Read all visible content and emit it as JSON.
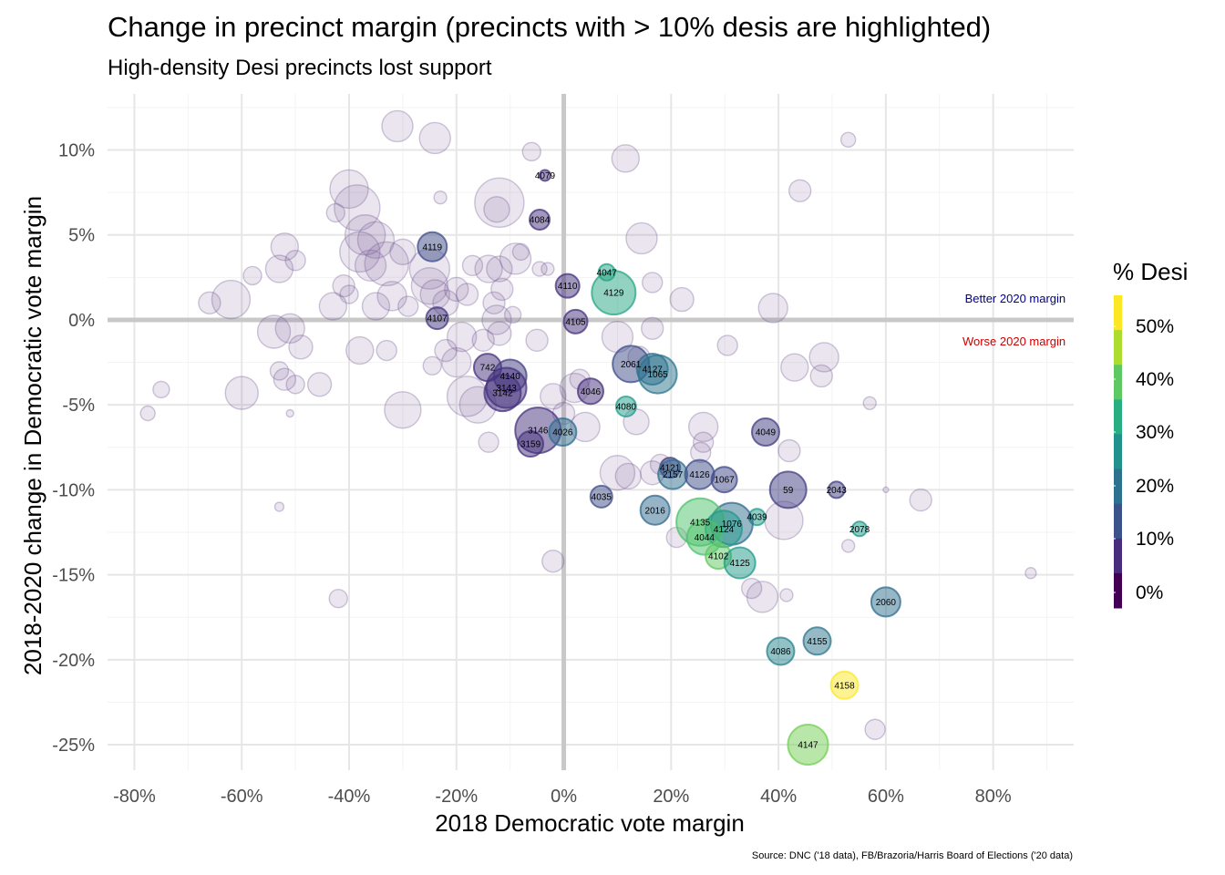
{
  "chart_data": {
    "type": "scatter",
    "title": "Change in precinct margin (precincts with > 10% desis are highlighted)",
    "subtitle": "High-density Desi precincts lost support",
    "xlabel": "2018 Democratic vote margin",
    "ylabel": "2018-2020 change in Democratic vote margin",
    "caption": "Source: DNC ('18 data), FB/Brazoria/Harris Board of Elections ('20 data)",
    "xlim": [
      -0.85,
      0.95
    ],
    "ylim": [
      -0.265,
      0.133
    ],
    "x_ticks": [
      -0.8,
      -0.6,
      -0.4,
      -0.2,
      0,
      0.2,
      0.4,
      0.6,
      0.8
    ],
    "x_tick_labels": [
      "-80%",
      "-60%",
      "-40%",
      "-20%",
      "0%",
      "20%",
      "40%",
      "60%",
      "80%"
    ],
    "y_ticks": [
      0.1,
      0.05,
      0,
      -0.05,
      -0.1,
      -0.15,
      -0.2,
      -0.25
    ],
    "y_tick_labels": [
      "10%",
      "5%",
      "0%",
      "-5%",
      "-10%",
      "-15%",
      "-20%",
      "-25%"
    ],
    "grid": true,
    "annotations": [
      {
        "text": "Better 2020 margin",
        "color": "#00008b",
        "x": 0.935,
        "y": 0.008
      },
      {
        "text": "Worse 2020 margin",
        "color": "#cd0000",
        "x": 0.935,
        "y": -0.008
      }
    ],
    "legend": {
      "title": "% Desi",
      "placement": "right",
      "labels": [
        "50%",
        "40%",
        "30%",
        "20%",
        "10%",
        "0%"
      ],
      "colors": [
        "#440154",
        "#472d7b",
        "#3b528b",
        "#2c728e",
        "#21918c",
        "#28ae80",
        "#5ec962",
        "#addc30",
        "#fde725"
      ]
    },
    "highlighted": [
      {
        "label": "4079",
        "x": -0.035,
        "y": 0.085,
        "size": 6,
        "desi": 0.08
      },
      {
        "label": "4084",
        "x": -0.045,
        "y": 0.059,
        "size": 11,
        "desi": 0.08
      },
      {
        "label": "4119",
        "x": -0.245,
        "y": 0.043,
        "size": 16,
        "desi": 0.13
      },
      {
        "label": "4047",
        "x": 0.08,
        "y": 0.028,
        "size": 9,
        "desi": 0.32
      },
      {
        "label": "4110",
        "x": 0.007,
        "y": 0.02,
        "size": 13,
        "desi": 0.08
      },
      {
        "label": "4129",
        "x": 0.093,
        "y": 0.016,
        "size": 24,
        "desi": 0.33
      },
      {
        "label": "4107",
        "x": -0.236,
        "y": 0.001,
        "size": 12,
        "desi": 0.09
      },
      {
        "label": "4105",
        "x": 0.022,
        "y": -0.001,
        "size": 13,
        "desi": 0.08
      },
      {
        "label": "742",
        "x": -0.142,
        "y": -0.028,
        "size": 15,
        "desi": 0.08
      },
      {
        "label": "4140",
        "x": -0.1,
        "y": -0.033,
        "size": 18,
        "desi": 0.1
      },
      {
        "label": "3143",
        "x": -0.107,
        "y": -0.04,
        "size": 22,
        "desi": 0.08
      },
      {
        "label": "3142",
        "x": -0.114,
        "y": -0.043,
        "size": 20,
        "desi": 0.08
      },
      {
        "label": "2061",
        "x": 0.125,
        "y": -0.026,
        "size": 20,
        "desi": 0.13
      },
      {
        "label": "4127",
        "x": 0.165,
        "y": -0.029,
        "size": 17,
        "desi": 0.2
      },
      {
        "label": "1065",
        "x": 0.175,
        "y": -0.032,
        "size": 21,
        "desi": 0.22
      },
      {
        "label": "4046",
        "x": 0.05,
        "y": -0.042,
        "size": 14,
        "desi": 0.08
      },
      {
        "label": "4080",
        "x": 0.116,
        "y": -0.051,
        "size": 11,
        "desi": 0.31
      },
      {
        "label": "3146",
        "x": -0.048,
        "y": -0.065,
        "size": 25,
        "desi": 0.08
      },
      {
        "label": "4026",
        "x": -0.002,
        "y": -0.066,
        "size": 15,
        "desi": 0.2
      },
      {
        "label": "3159",
        "x": -0.062,
        "y": -0.073,
        "size": 14,
        "desi": 0.08
      },
      {
        "label": "4049",
        "x": 0.376,
        "y": -0.066,
        "size": 15,
        "desi": 0.1
      },
      {
        "label": "4121",
        "x": 0.198,
        "y": -0.087,
        "size": 11,
        "desi": 0.09
      },
      {
        "label": "2157",
        "x": 0.203,
        "y": -0.091,
        "size": 16,
        "desi": 0.2
      },
      {
        "label": "4126",
        "x": 0.253,
        "y": -0.091,
        "size": 16,
        "desi": 0.13
      },
      {
        "label": "1067",
        "x": 0.299,
        "y": -0.094,
        "size": 14,
        "desi": 0.12
      },
      {
        "label": "59",
        "x": 0.418,
        "y": -0.1,
        "size": 20,
        "desi": 0.1
      },
      {
        "label": "2043",
        "x": 0.508,
        "y": -0.1,
        "size": 9,
        "desi": 0.1
      },
      {
        "label": "4035",
        "x": 0.07,
        "y": -0.104,
        "size": 12,
        "desi": 0.13
      },
      {
        "label": "2016",
        "x": 0.17,
        "y": -0.112,
        "size": 16,
        "desi": 0.19
      },
      {
        "label": "4039",
        "x": 0.36,
        "y": -0.116,
        "size": 9,
        "desi": 0.31
      },
      {
        "label": "1076",
        "x": 0.313,
        "y": -0.12,
        "size": 23,
        "desi": 0.2
      },
      {
        "label": "4135",
        "x": 0.254,
        "y": -0.119,
        "size": 26,
        "desi": 0.4
      },
      {
        "label": "4124",
        "x": 0.298,
        "y": -0.123,
        "size": 20,
        "desi": 0.3
      },
      {
        "label": "2078",
        "x": 0.551,
        "y": -0.123,
        "size": 8,
        "desi": 0.3
      },
      {
        "label": "4044",
        "x": 0.262,
        "y": -0.128,
        "size": 19,
        "desi": 0.4
      },
      {
        "label": "4102",
        "x": 0.288,
        "y": -0.139,
        "size": 14,
        "desi": 0.42
      },
      {
        "label": "4125",
        "x": 0.328,
        "y": -0.143,
        "size": 17,
        "desi": 0.3
      },
      {
        "label": "2060",
        "x": 0.6,
        "y": -0.166,
        "size": 16,
        "desi": 0.2
      },
      {
        "label": "4155",
        "x": 0.472,
        "y": -0.189,
        "size": 15,
        "desi": 0.22
      },
      {
        "label": "4086",
        "x": 0.404,
        "y": -0.195,
        "size": 15,
        "desi": 0.25
      },
      {
        "label": "4158",
        "x": 0.523,
        "y": -0.215,
        "size": 15,
        "desi": 0.56
      },
      {
        "label": "4147",
        "x": 0.455,
        "y": -0.25,
        "size": 22,
        "desi": 0.44
      }
    ],
    "background_points": [
      {
        "x": -0.31,
        "y": 0.114,
        "size": 17
      },
      {
        "x": -0.24,
        "y": 0.107,
        "size": 17
      },
      {
        "x": -0.06,
        "y": 0.099,
        "size": 10
      },
      {
        "x": 0.115,
        "y": 0.095,
        "size": 15
      },
      {
        "x": 0.53,
        "y": 0.106,
        "size": 8
      },
      {
        "x": -0.23,
        "y": 0.072,
        "size": 7
      },
      {
        "x": 0.44,
        "y": 0.076,
        "size": 12
      },
      {
        "x": -0.4,
        "y": 0.077,
        "size": 21
      },
      {
        "x": -0.385,
        "y": 0.066,
        "size": 25
      },
      {
        "x": -0.425,
        "y": 0.063,
        "size": 10
      },
      {
        "x": -0.12,
        "y": 0.069,
        "size": 27
      },
      {
        "x": -0.125,
        "y": 0.065,
        "size": 14
      },
      {
        "x": -0.37,
        "y": 0.05,
        "size": 22
      },
      {
        "x": -0.35,
        "y": 0.047,
        "size": 20
      },
      {
        "x": -0.38,
        "y": 0.04,
        "size": 22
      },
      {
        "x": -0.36,
        "y": 0.032,
        "size": 17
      },
      {
        "x": -0.33,
        "y": 0.033,
        "size": 24
      },
      {
        "x": -0.3,
        "y": 0.04,
        "size": 14
      },
      {
        "x": -0.41,
        "y": 0.02,
        "size": 12
      },
      {
        "x": -0.4,
        "y": 0.015,
        "size": 10
      },
      {
        "x": -0.35,
        "y": 0.008,
        "size": 15
      },
      {
        "x": -0.32,
        "y": 0.014,
        "size": 16
      },
      {
        "x": -0.29,
        "y": 0.008,
        "size": 11
      },
      {
        "x": -0.43,
        "y": 0.008,
        "size": 15
      },
      {
        "x": -0.52,
        "y": 0.043,
        "size": 15
      },
      {
        "x": -0.53,
        "y": 0.03,
        "size": 15
      },
      {
        "x": -0.5,
        "y": 0.035,
        "size": 11
      },
      {
        "x": -0.58,
        "y": 0.026,
        "size": 10
      },
      {
        "x": -0.62,
        "y": 0.012,
        "size": 21
      },
      {
        "x": -0.66,
        "y": 0.01,
        "size": 12
      },
      {
        "x": -0.54,
        "y": -0.007,
        "size": 18
      },
      {
        "x": -0.51,
        "y": -0.005,
        "size": 16
      },
      {
        "x": -0.49,
        "y": -0.016,
        "size": 13
      },
      {
        "x": -0.6,
        "y": -0.043,
        "size": 18
      },
      {
        "x": -0.53,
        "y": -0.03,
        "size": 10
      },
      {
        "x": -0.52,
        "y": -0.035,
        "size": 12
      },
      {
        "x": -0.5,
        "y": -0.038,
        "size": 10
      },
      {
        "x": -0.455,
        "y": -0.038,
        "size": 13
      },
      {
        "x": -0.75,
        "y": -0.041,
        "size": 9
      },
      {
        "x": -0.775,
        "y": -0.055,
        "size": 8
      },
      {
        "x": -0.51,
        "y": -0.055,
        "size": 4
      },
      {
        "x": -0.53,
        "y": -0.11,
        "size": 5
      },
      {
        "x": -0.42,
        "y": -0.164,
        "size": 10
      },
      {
        "x": -0.38,
        "y": -0.018,
        "size": 15
      },
      {
        "x": -0.33,
        "y": -0.018,
        "size": 11
      },
      {
        "x": -0.3,
        "y": -0.053,
        "size": 20
      },
      {
        "x": -0.25,
        "y": 0.03,
        "size": 22
      },
      {
        "x": -0.25,
        "y": 0.02,
        "size": 20
      },
      {
        "x": -0.24,
        "y": 0.015,
        "size": 16
      },
      {
        "x": -0.22,
        "y": 0.01,
        "size": 14
      },
      {
        "x": -0.18,
        "y": 0.015,
        "size": 12
      },
      {
        "x": -0.2,
        "y": 0.018,
        "size": 13
      },
      {
        "x": -0.17,
        "y": 0.032,
        "size": 11
      },
      {
        "x": -0.14,
        "y": 0.03,
        "size": 15
      },
      {
        "x": -0.12,
        "y": 0.03,
        "size": 14
      },
      {
        "x": -0.115,
        "y": 0.018,
        "size": 12
      },
      {
        "x": -0.09,
        "y": 0.036,
        "size": 17
      },
      {
        "x": -0.08,
        "y": 0.04,
        "size": 9
      },
      {
        "x": -0.045,
        "y": 0.03,
        "size": 8
      },
      {
        "x": -0.03,
        "y": 0.03,
        "size": 7
      },
      {
        "x": -0.13,
        "y": 0.01,
        "size": 12
      },
      {
        "x": -0.125,
        "y": 0.0,
        "size": 16
      },
      {
        "x": -0.12,
        "y": -0.008,
        "size": 13
      },
      {
        "x": -0.19,
        "y": -0.01,
        "size": 16
      },
      {
        "x": -0.2,
        "y": -0.025,
        "size": 16
      },
      {
        "x": -0.22,
        "y": -0.018,
        "size": 12
      },
      {
        "x": -0.245,
        "y": -0.027,
        "size": 10
      },
      {
        "x": -0.18,
        "y": -0.045,
        "size": 22
      },
      {
        "x": -0.16,
        "y": -0.05,
        "size": 20
      },
      {
        "x": -0.14,
        "y": -0.072,
        "size": 11
      },
      {
        "x": -0.15,
        "y": -0.012,
        "size": 12
      },
      {
        "x": -0.05,
        "y": -0.012,
        "size": 12
      },
      {
        "x": -0.02,
        "y": -0.045,
        "size": 14
      },
      {
        "x": 0.02,
        "y": -0.04,
        "size": 16
      },
      {
        "x": 0.04,
        "y": -0.063,
        "size": 16
      },
      {
        "x": 0.0,
        "y": -0.055,
        "size": 12
      },
      {
        "x": -0.02,
        "y": -0.142,
        "size": 12
      },
      {
        "x": 0.03,
        "y": -0.035,
        "size": 11
      },
      {
        "x": 0.1,
        "y": -0.01,
        "size": 17
      },
      {
        "x": 0.145,
        "y": 0.048,
        "size": 17
      },
      {
        "x": 0.165,
        "y": 0.022,
        "size": 11
      },
      {
        "x": 0.22,
        "y": 0.012,
        "size": 13
      },
      {
        "x": 0.165,
        "y": -0.005,
        "size": 12
      },
      {
        "x": 0.14,
        "y": -0.022,
        "size": 12
      },
      {
        "x": 0.135,
        "y": -0.06,
        "size": 14
      },
      {
        "x": 0.1,
        "y": -0.09,
        "size": 19
      },
      {
        "x": 0.12,
        "y": -0.092,
        "size": 14
      },
      {
        "x": 0.165,
        "y": -0.09,
        "size": 13
      },
      {
        "x": 0.18,
        "y": -0.085,
        "size": 11
      },
      {
        "x": 0.21,
        "y": -0.128,
        "size": 11
      },
      {
        "x": 0.26,
        "y": -0.063,
        "size": 16
      },
      {
        "x": 0.26,
        "y": -0.072,
        "size": 11
      },
      {
        "x": 0.255,
        "y": -0.078,
        "size": 11
      },
      {
        "x": 0.305,
        "y": -0.015,
        "size": 11
      },
      {
        "x": 0.39,
        "y": 0.007,
        "size": 16
      },
      {
        "x": 0.43,
        "y": -0.028,
        "size": 15
      },
      {
        "x": 0.485,
        "y": -0.022,
        "size": 16
      },
      {
        "x": 0.48,
        "y": -0.033,
        "size": 12
      },
      {
        "x": 0.42,
        "y": -0.077,
        "size": 12
      },
      {
        "x": 0.41,
        "y": -0.118,
        "size": 21
      },
      {
        "x": 0.37,
        "y": -0.163,
        "size": 17
      },
      {
        "x": 0.35,
        "y": -0.158,
        "size": 11
      },
      {
        "x": 0.415,
        "y": -0.162,
        "size": 7
      },
      {
        "x": 0.53,
        "y": -0.133,
        "size": 7
      },
      {
        "x": 0.57,
        "y": -0.049,
        "size": 7
      },
      {
        "x": 0.665,
        "y": -0.106,
        "size": 12
      },
      {
        "x": 0.6,
        "y": -0.1,
        "size": 3
      },
      {
        "x": 0.58,
        "y": -0.241,
        "size": 11
      },
      {
        "x": 0.87,
        "y": -0.149,
        "size": 6
      },
      {
        "x": -0.095,
        "y": 0.003,
        "size": 9
      }
    ]
  }
}
